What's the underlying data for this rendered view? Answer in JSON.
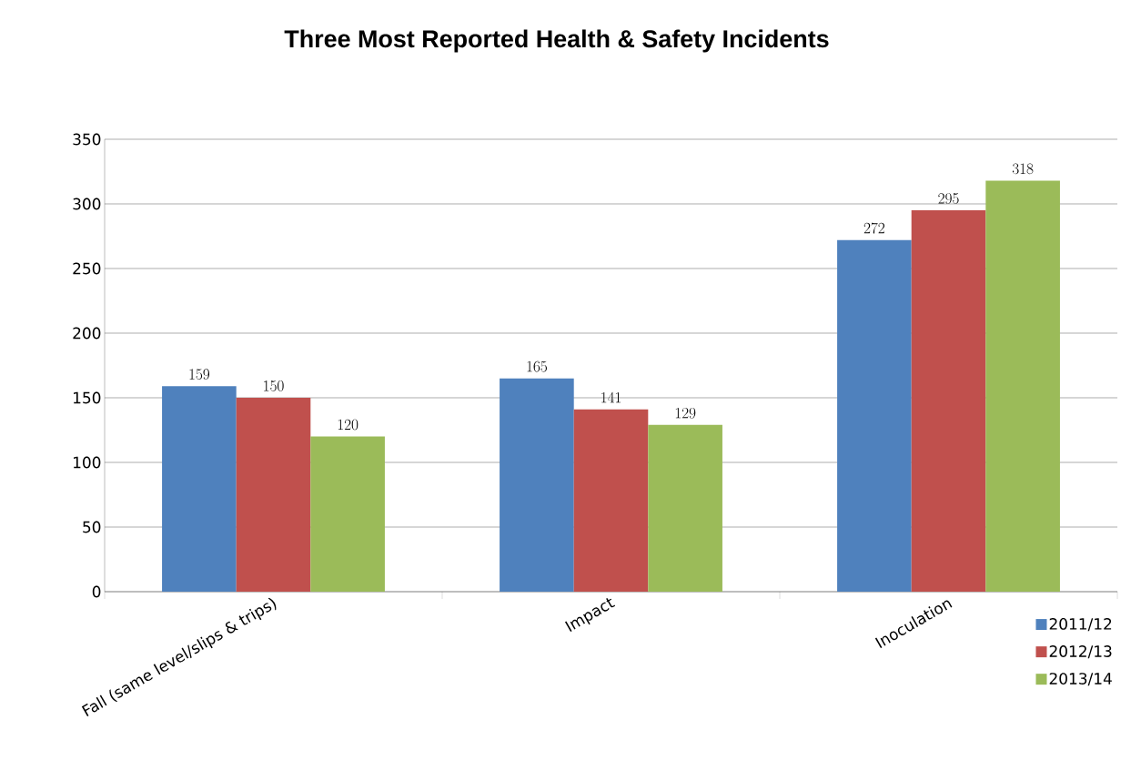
{
  "chart_data": {
    "type": "bar",
    "title": "Three Most Reported Health & Safety Incidents",
    "categories": [
      "Fall (same level/slips & trips)",
      "Impact",
      "Inoculation"
    ],
    "series": [
      {
        "name": "2011/12",
        "color": "#4f81bd",
        "values": [
          159,
          165,
          272
        ]
      },
      {
        "name": "2012/13",
        "color": "#c0504d",
        "values": [
          150,
          141,
          295
        ]
      },
      {
        "name": "2013/14",
        "color": "#9bbb59",
        "values": [
          120,
          129,
          318
        ]
      }
    ],
    "ylim": [
      0,
      350
    ],
    "yticks": [
      0,
      50,
      100,
      150,
      200,
      250,
      300,
      350
    ],
    "grid": "y",
    "legend": "bottom right",
    "data_labels": true
  }
}
